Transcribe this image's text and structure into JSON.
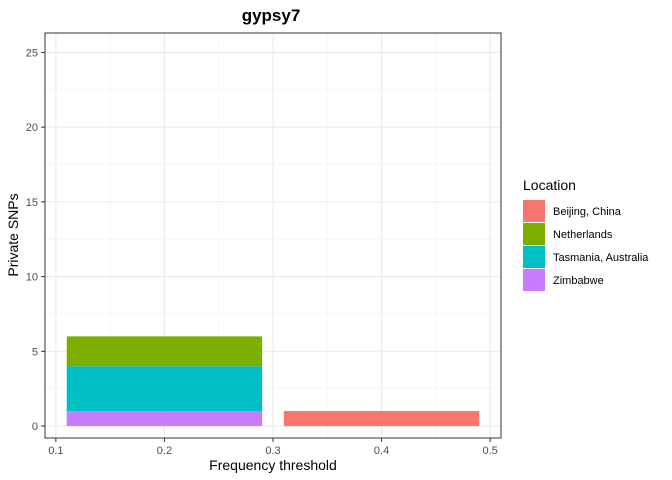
{
  "chart_data": {
    "type": "bar",
    "title": "gypsy7",
    "xlabel": "Frequency threshold",
    "ylabel": "Private SNPs",
    "xlim": [
      0.09,
      0.51
    ],
    "ylim": [
      -0.8,
      26.3
    ],
    "x_ticks": [
      0.1,
      0.2,
      0.3,
      0.4,
      0.5
    ],
    "y_ticks": [
      0,
      5,
      10,
      15,
      20,
      25
    ],
    "x_tick_labels": [
      "0.1",
      "0.2",
      "0.3",
      "0.4",
      "0.5"
    ],
    "y_tick_labels": [
      "0",
      "5",
      "10",
      "15",
      "20",
      "25"
    ],
    "stacked": true,
    "grid": true,
    "legend": {
      "title": "Location",
      "position": "right"
    },
    "series": [
      {
        "name": "Beijing, China",
        "color": "#F8766D",
        "bars": [
          {
            "x0": 0.31,
            "x1": 0.49,
            "value": 1
          }
        ]
      },
      {
        "name": "Netherlands",
        "color": "#7CAE00",
        "bars": [
          {
            "x0": 0.11,
            "x1": 0.29,
            "value": 2
          }
        ]
      },
      {
        "name": "Tasmania, Australia",
        "color": "#00BFC4",
        "bars": [
          {
            "x0": 0.11,
            "x1": 0.29,
            "value": 3
          }
        ]
      },
      {
        "name": "Zimbabwe",
        "color": "#C77CFF",
        "bars": [
          {
            "x0": 0.11,
            "x1": 0.29,
            "value": 1
          }
        ]
      }
    ]
  }
}
